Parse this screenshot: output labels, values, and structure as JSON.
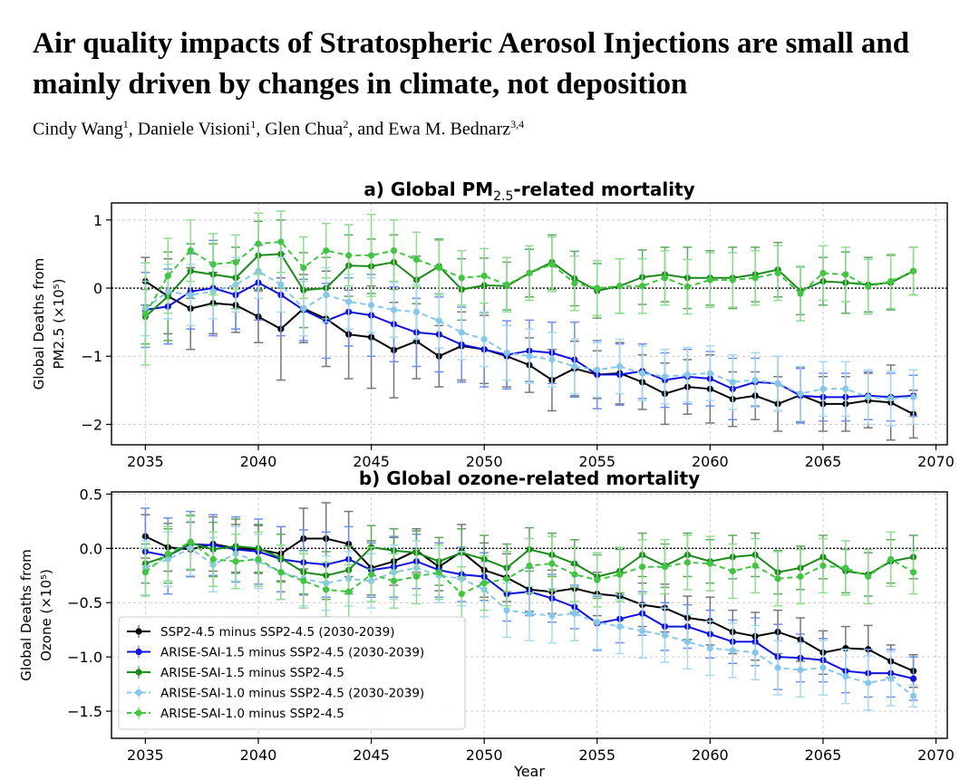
{
  "paper": {
    "title": "Air quality impacts of Stratospheric Aerosol Injections are small and mainly driven by changes in climate, not deposition",
    "authors": [
      {
        "name": "Cindy Wang",
        "aff": "1"
      },
      {
        "name": "Daniele Visioni",
        "aff": "1"
      },
      {
        "name": "Glen Chua",
        "aff": "2"
      },
      {
        "name": "Ewa M. Bednarz",
        "aff": "3,4"
      }
    ],
    "author_sep": ", ",
    "author_last_sep": ", and "
  },
  "colors": {
    "ssp": "#000000",
    "arise15_base": "#1010e0",
    "arise15": "#1a8a1a",
    "arise10_base": "#87c8ea",
    "arise10": "#44c444",
    "err_ssp": "#777777",
    "err_arise15_base": "#6f8fe6",
    "err_arise15": "#5fa85f",
    "err_arise10_base": "#a9d9f2",
    "err_arise10": "#8fdc8f"
  },
  "chart_data": [
    {
      "type": "line",
      "panel": "a",
      "title": "a) Global PM2.5-related mortality",
      "title_parts": [
        "a) Global PM",
        "2.5",
        "-related mortality"
      ],
      "ylabel_lines": [
        "Global Deaths from",
        "PM2.5 (×10⁵)"
      ],
      "xlabel": "",
      "xlim": [
        2033.5,
        2070.5
      ],
      "ylim": [
        -2.3,
        1.25
      ],
      "xticks": [
        2035,
        2040,
        2045,
        2050,
        2055,
        2060,
        2065,
        2070
      ],
      "yticks": [
        1,
        0,
        -1,
        -2
      ],
      "ytick_labels": [
        "1",
        "0",
        "−1",
        "−2"
      ],
      "grid": true,
      "zero_line": true,
      "x": [
        2035,
        2036,
        2037,
        2038,
        2039,
        2040,
        2041,
        2042,
        2043,
        2044,
        2045,
        2046,
        2047,
        2048,
        2049,
        2050,
        2051,
        2052,
        2053,
        2054,
        2055,
        2056,
        2057,
        2058,
        2059,
        2060,
        2061,
        2062,
        2063,
        2064,
        2065,
        2066,
        2067,
        2068,
        2069
      ],
      "series": [
        {
          "name": "SSP2-4.5 minus SSP2-4.5 (2030-2039)",
          "key": "ssp",
          "values": [
            0.1,
            -0.12,
            -0.3,
            -0.22,
            -0.25,
            -0.42,
            -0.6,
            -0.3,
            -0.45,
            -0.68,
            -0.72,
            -0.91,
            -0.78,
            -1.0,
            -0.85,
            -0.9,
            -1.0,
            -1.13,
            -1.35,
            -1.18,
            -1.27,
            -1.25,
            -1.38,
            -1.55,
            -1.45,
            -1.48,
            -1.63,
            -1.58,
            -1.7,
            -1.57,
            -1.7,
            -1.7,
            -1.65,
            -1.68,
            -1.85
          ],
          "errors": [
            0.35,
            0.55,
            0.6,
            0.45,
            0.4,
            0.38,
            0.75,
            0.5,
            0.7,
            0.65,
            0.75,
            0.7,
            0.55,
            0.45,
            0.5,
            0.5,
            0.45,
            0.4,
            0.45,
            0.4,
            0.35,
            0.45,
            0.4,
            0.45,
            0.4,
            0.5,
            0.4,
            0.35,
            0.4,
            0.4,
            0.4,
            0.4,
            0.4,
            0.55,
            0.35
          ]
        },
        {
          "name": "ARISE-SAI-1.5 minus SSP2-4.5 (2030-2039)",
          "key": "arise15_base",
          "values": [
            -0.32,
            -0.27,
            -0.05,
            0.0,
            -0.1,
            0.08,
            -0.1,
            -0.32,
            -0.48,
            -0.35,
            -0.4,
            -0.53,
            -0.65,
            -0.68,
            -0.83,
            -0.9,
            -0.98,
            -0.92,
            -0.95,
            -1.05,
            -1.27,
            -1.27,
            -1.22,
            -1.35,
            -1.3,
            -1.33,
            -1.48,
            -1.38,
            -1.4,
            -1.58,
            -1.6,
            -1.6,
            -1.58,
            -1.6,
            -1.58
          ],
          "errors": [
            0.55,
            0.55,
            0.55,
            0.7,
            0.5,
            0.55,
            0.6,
            0.45,
            0.55,
            0.5,
            0.6,
            0.55,
            0.5,
            0.55,
            0.55,
            0.55,
            0.5,
            0.45,
            0.45,
            0.55,
            0.5,
            0.45,
            0.4,
            0.4,
            0.4,
            0.4,
            0.45,
            0.35,
            0.4,
            0.4,
            0.35,
            0.35,
            0.35,
            0.35,
            0.3
          ]
        },
        {
          "name": "ARISE-SAI-1.5 minus SSP2-4.5",
          "key": "arise15",
          "values": [
            -0.42,
            -0.12,
            0.25,
            0.2,
            0.15,
            0.48,
            0.5,
            -0.03,
            0.0,
            0.33,
            0.32,
            0.38,
            0.12,
            0.32,
            -0.02,
            0.04,
            0.03,
            0.22,
            0.38,
            0.14,
            -0.04,
            0.03,
            0.16,
            0.2,
            0.15,
            0.15,
            0.15,
            0.2,
            0.27,
            -0.04,
            0.1,
            0.08,
            0.05,
            0.08,
            0.25
          ],
          "errors": [
            0.4,
            0.65,
            0.4,
            0.45,
            0.45,
            0.5,
            0.5,
            0.55,
            0.45,
            0.45,
            0.4,
            0.4,
            0.35,
            0.4,
            0.45,
            0.4,
            0.35,
            0.35,
            0.4,
            0.4,
            0.4,
            0.4,
            0.4,
            0.4,
            0.45,
            0.4,
            0.45,
            0.4,
            0.4,
            0.35,
            0.35,
            0.45,
            0.4,
            0.4,
            0.35
          ]
        },
        {
          "name": "ARISE-SAI-1.0 minus SSP2-4.5 (2030-2039)",
          "key": "arise10_base",
          "values": [
            -0.3,
            -0.05,
            -0.1,
            -0.05,
            0.05,
            0.25,
            0.05,
            -0.3,
            -0.1,
            -0.2,
            -0.25,
            -0.32,
            -0.35,
            -0.48,
            -0.65,
            -0.75,
            -0.95,
            -1.0,
            -1.05,
            -1.15,
            -1.2,
            -1.15,
            -1.25,
            -1.3,
            -1.27,
            -1.25,
            -1.38,
            -1.35,
            -1.4,
            -1.55,
            -1.48,
            -1.48,
            -1.6,
            -1.62,
            -1.6
          ],
          "errors": [
            0.4,
            0.4,
            0.45,
            0.4,
            0.4,
            0.4,
            0.4,
            0.4,
            0.4,
            0.4,
            0.4,
            0.4,
            0.4,
            0.4,
            0.4,
            0.4,
            0.4,
            0.4,
            0.4,
            0.4,
            0.4,
            0.4,
            0.4,
            0.4,
            0.4,
            0.4,
            0.4,
            0.4,
            0.4,
            0.4,
            0.4,
            0.4,
            0.4,
            0.4,
            0.4
          ]
        },
        {
          "name": "ARISE-SAI-1.0 minus SSP2-4.5",
          "key": "arise10",
          "values": [
            -0.38,
            0.18,
            0.55,
            0.35,
            0.38,
            0.65,
            0.68,
            0.3,
            0.55,
            0.48,
            0.48,
            0.55,
            0.42,
            0.3,
            0.15,
            0.18,
            0.05,
            0.22,
            0.35,
            0.07,
            0.0,
            0.03,
            0.03,
            0.15,
            0.02,
            0.12,
            0.12,
            0.15,
            0.22,
            -0.08,
            0.22,
            0.2,
            0.02,
            0.1,
            0.25
          ],
          "errors": [
            0.75,
            0.55,
            0.45,
            0.45,
            0.4,
            0.45,
            0.45,
            0.45,
            0.4,
            0.45,
            0.6,
            0.45,
            0.4,
            0.4,
            0.4,
            0.4,
            0.4,
            0.4,
            0.4,
            0.4,
            0.4,
            0.4,
            0.4,
            0.4,
            0.4,
            0.4,
            0.4,
            0.4,
            0.4,
            0.4,
            0.4,
            0.4,
            0.4,
            0.4,
            0.35
          ]
        }
      ]
    },
    {
      "type": "line",
      "panel": "b",
      "title": "b) Global ozone-related mortality",
      "ylabel_lines": [
        "Global Deaths from",
        "Ozone (×10⁵)"
      ],
      "xlabel": "Year",
      "xlim": [
        2033.5,
        2070.5
      ],
      "ylim": [
        -1.75,
        0.52
      ],
      "xticks": [
        2035,
        2040,
        2045,
        2050,
        2055,
        2060,
        2065,
        2070
      ],
      "yticks": [
        0.5,
        0.0,
        -0.5,
        -1.0,
        -1.5
      ],
      "ytick_labels": [
        "0.5",
        "0.0",
        "−0.5",
        "−1.0",
        "−1.5"
      ],
      "grid": true,
      "zero_line": true,
      "legend": "lower-left",
      "x": [
        2035,
        2036,
        2037,
        2038,
        2039,
        2040,
        2041,
        2042,
        2043,
        2044,
        2045,
        2046,
        2047,
        2048,
        2049,
        2050,
        2051,
        2052,
        2053,
        2054,
        2055,
        2056,
        2057,
        2058,
        2059,
        2060,
        2061,
        2062,
        2063,
        2064,
        2065,
        2066,
        2067,
        2068,
        2069
      ],
      "series": [
        {
          "name": "SSP2-4.5 minus SSP2-4.5 (2030-2039)",
          "key": "ssp",
          "values": [
            0.11,
            0.01,
            -0.01,
            0.04,
            0.0,
            -0.01,
            -0.05,
            0.09,
            0.09,
            0.04,
            -0.18,
            -0.12,
            -0.02,
            -0.17,
            -0.03,
            -0.2,
            -0.27,
            -0.38,
            -0.4,
            -0.37,
            -0.42,
            -0.44,
            -0.52,
            -0.55,
            -0.64,
            -0.67,
            -0.77,
            -0.81,
            -0.77,
            -0.84,
            -0.96,
            -0.92,
            -0.93,
            -1.04,
            -1.13
          ],
          "errors": [
            0.2,
            0.22,
            0.25,
            0.25,
            0.22,
            0.22,
            0.25,
            0.28,
            0.33,
            0.3,
            0.25,
            0.22,
            0.2,
            0.22,
            0.25,
            0.25,
            0.22,
            0.2,
            0.2,
            0.22,
            0.2,
            0.22,
            0.2,
            0.22,
            0.2,
            0.22,
            0.2,
            0.22,
            0.2,
            0.2,
            0.2,
            0.2,
            0.22,
            0.15,
            0.15
          ]
        },
        {
          "name": "ARISE-SAI-1.5 minus SSP2-4.5 (2030-2039)",
          "key": "arise15_base",
          "values": [
            -0.03,
            -0.07,
            0.04,
            0.03,
            -0.01,
            -0.03,
            -0.1,
            -0.13,
            -0.15,
            -0.1,
            -0.2,
            -0.17,
            -0.12,
            -0.2,
            -0.24,
            -0.26,
            -0.42,
            -0.4,
            -0.46,
            -0.54,
            -0.69,
            -0.65,
            -0.6,
            -0.72,
            -0.72,
            -0.79,
            -0.86,
            -0.86,
            -1.0,
            -1.01,
            -1.03,
            -1.13,
            -1.15,
            -1.15,
            -1.2
          ],
          "errors": [
            0.4,
            0.35,
            0.3,
            0.28,
            0.3,
            0.3,
            0.3,
            0.3,
            0.3,
            0.3,
            0.25,
            0.28,
            0.25,
            0.25,
            0.25,
            0.22,
            0.25,
            0.22,
            0.22,
            0.2,
            0.25,
            0.22,
            0.2,
            0.22,
            0.2,
            0.22,
            0.2,
            0.22,
            0.3,
            0.22,
            0.2,
            0.2,
            0.22,
            0.22,
            0.2
          ]
        },
        {
          "name": "ARISE-SAI-1.5 minus SSP2-4.5",
          "key": "arise15",
          "values": [
            -0.14,
            -0.07,
            0.05,
            -0.01,
            0.02,
            0.0,
            -0.09,
            -0.22,
            -0.25,
            -0.2,
            0.01,
            -0.02,
            -0.04,
            -0.12,
            -0.04,
            -0.1,
            -0.18,
            -0.01,
            -0.06,
            -0.14,
            -0.26,
            -0.21,
            -0.06,
            -0.16,
            -0.06,
            -0.12,
            -0.08,
            -0.06,
            -0.22,
            -0.18,
            -0.08,
            -0.21,
            -0.24,
            -0.12,
            -0.08
          ],
          "errors": [
            0.18,
            0.25,
            0.25,
            0.25,
            0.25,
            0.22,
            0.22,
            0.2,
            0.22,
            0.22,
            0.2,
            0.2,
            0.2,
            0.22,
            0.22,
            0.22,
            0.22,
            0.2,
            0.2,
            0.22,
            0.2,
            0.2,
            0.2,
            0.2,
            0.2,
            0.2,
            0.2,
            0.2,
            0.2,
            0.2,
            0.2,
            0.2,
            0.2,
            0.2,
            0.2
          ]
        },
        {
          "name": "ARISE-SAI-1.0 minus SSP2-4.5 (2030-2039)",
          "key": "arise10_base",
          "values": [
            -0.18,
            -0.1,
            0.0,
            -0.15,
            -0.05,
            -0.12,
            -0.22,
            -0.28,
            -0.32,
            -0.28,
            -0.3,
            -0.22,
            -0.18,
            -0.25,
            -0.28,
            -0.38,
            -0.57,
            -0.6,
            -0.62,
            -0.6,
            -0.68,
            -0.72,
            -0.76,
            -0.8,
            -0.86,
            -0.92,
            -0.94,
            -0.96,
            -1.1,
            -1.12,
            -1.1,
            -1.18,
            -1.24,
            -1.2,
            -1.36
          ],
          "errors": [
            0.25,
            0.25,
            0.25,
            0.25,
            0.25,
            0.25,
            0.25,
            0.25,
            0.25,
            0.25,
            0.25,
            0.25,
            0.25,
            0.25,
            0.25,
            0.25,
            0.25,
            0.25,
            0.25,
            0.25,
            0.25,
            0.25,
            0.25,
            0.25,
            0.25,
            0.25,
            0.25,
            0.25,
            0.25,
            0.25,
            0.25,
            0.25,
            0.25,
            0.25,
            0.1
          ]
        },
        {
          "name": "ARISE-SAI-1.0 minus SSP2-4.5",
          "key": "arise10",
          "values": [
            -0.22,
            -0.05,
            0.06,
            -0.1,
            -0.12,
            -0.1,
            -0.22,
            -0.3,
            -0.38,
            -0.4,
            -0.24,
            -0.3,
            -0.26,
            -0.22,
            -0.42,
            -0.32,
            -0.28,
            -0.16,
            -0.14,
            -0.24,
            -0.29,
            -0.24,
            -0.17,
            -0.17,
            -0.13,
            -0.14,
            -0.21,
            -0.16,
            -0.28,
            -0.26,
            -0.16,
            -0.18,
            -0.26,
            -0.1,
            -0.22
          ],
          "errors": [
            0.22,
            0.25,
            0.25,
            0.25,
            0.25,
            0.25,
            0.25,
            0.25,
            0.25,
            0.25,
            0.25,
            0.25,
            0.25,
            0.25,
            0.25,
            0.25,
            0.25,
            0.25,
            0.25,
            0.25,
            0.25,
            0.25,
            0.25,
            0.25,
            0.25,
            0.25,
            0.25,
            0.25,
            0.25,
            0.25,
            0.25,
            0.25,
            0.25,
            0.25,
            0.2
          ]
        }
      ]
    }
  ]
}
